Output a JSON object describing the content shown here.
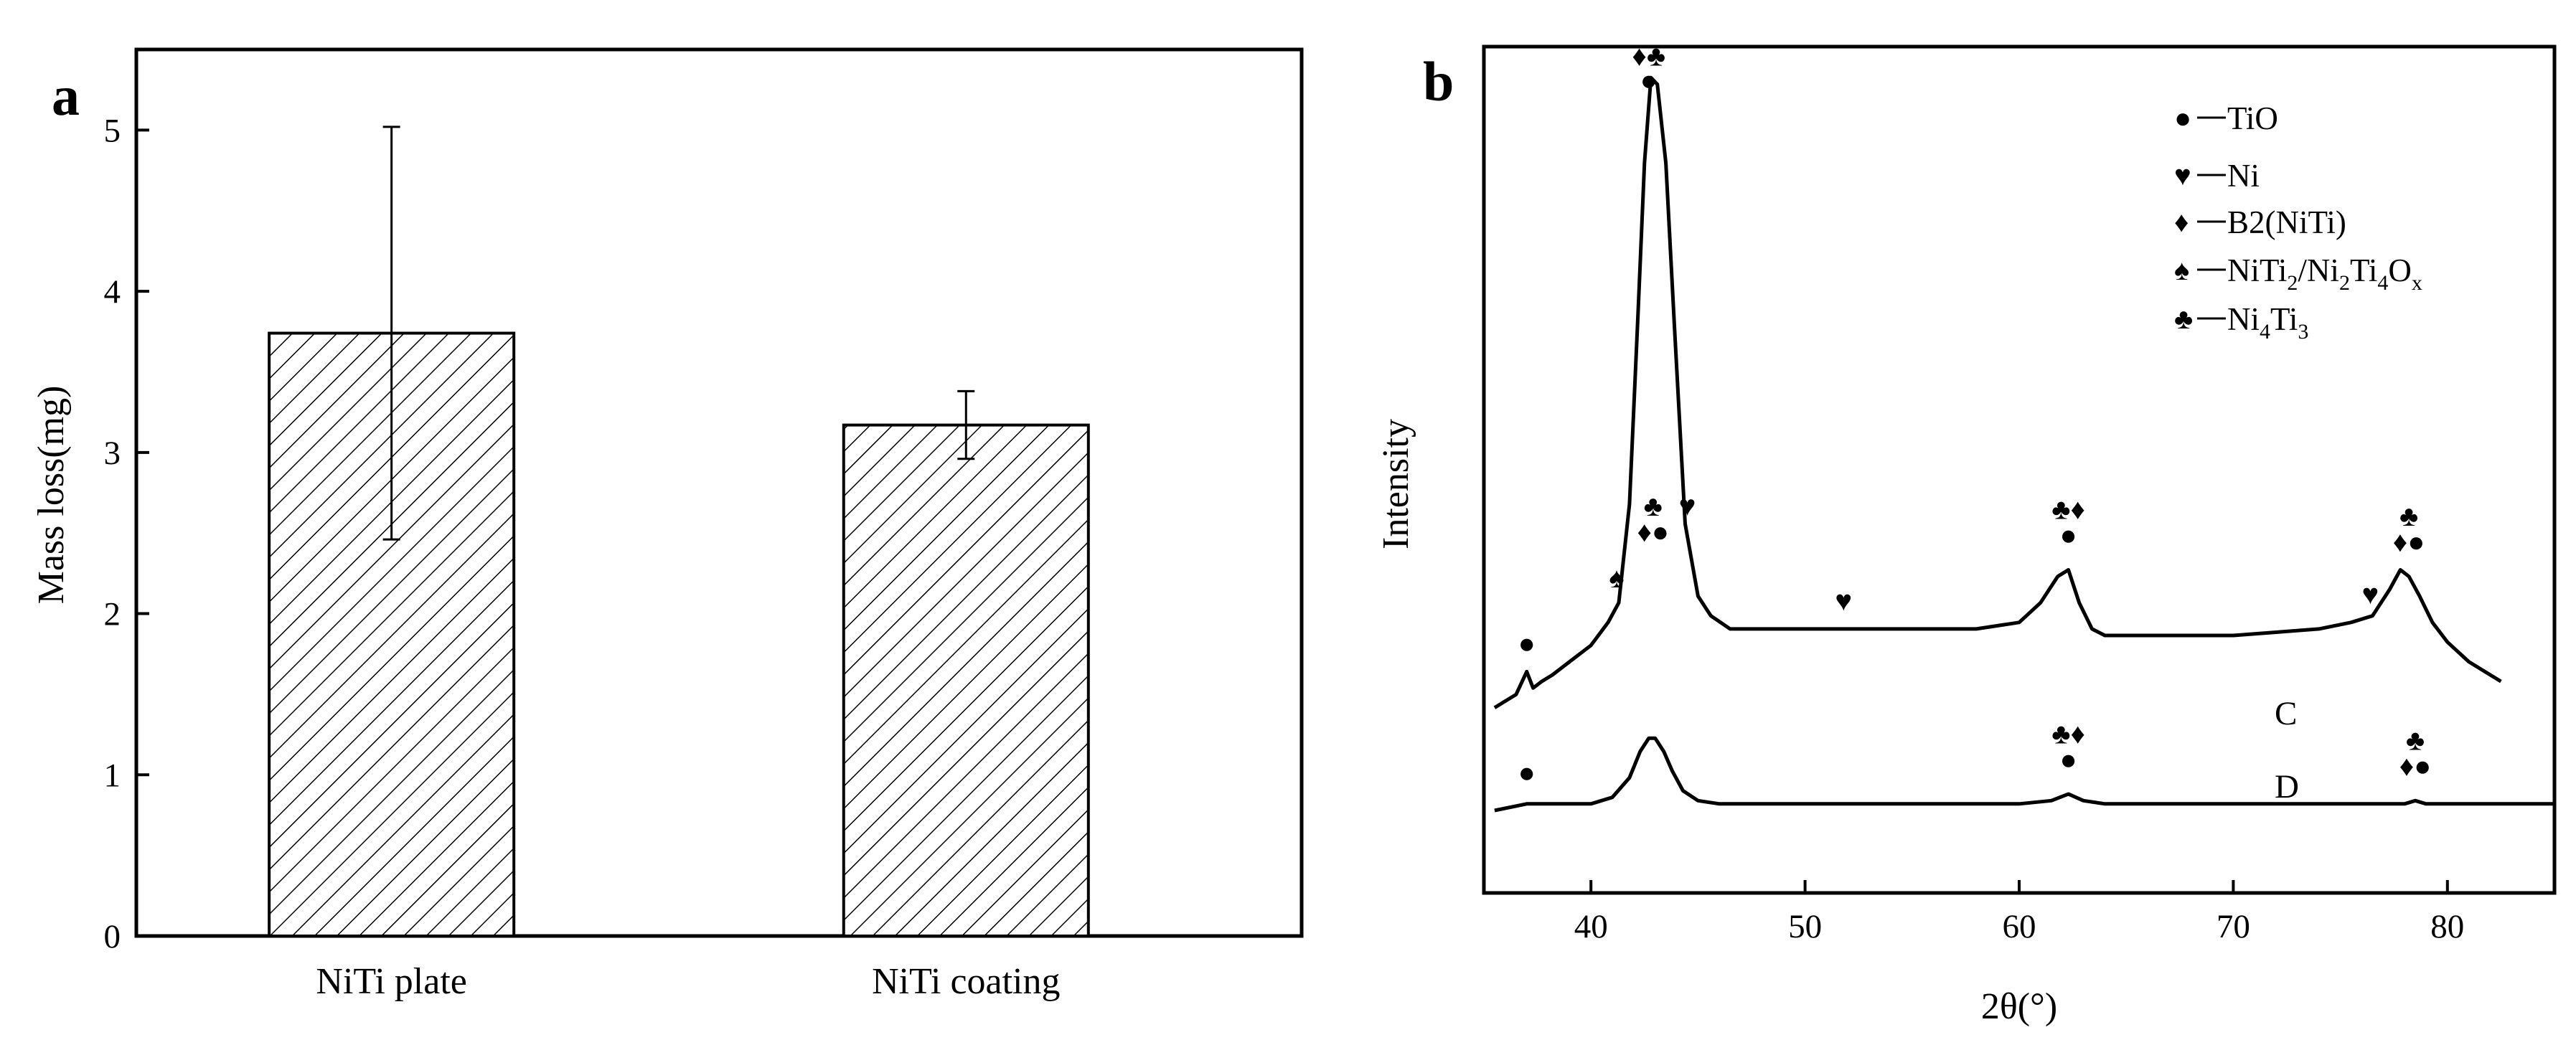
{
  "chart_data": [
    {
      "panel": "a",
      "type": "bar",
      "title": "",
      "xlabel": "",
      "ylabel": "Mass loss(mg)",
      "ylim": [
        0,
        5.5
      ],
      "yticks": [
        "0",
        "1",
        "2",
        "3",
        "4",
        "5"
      ],
      "categories": [
        "NiTi plate",
        "NiTi coating"
      ],
      "values": [
        3.74,
        3.17
      ],
      "errors": [
        1.28,
        0.21
      ],
      "fill": "diagonal hatch"
    },
    {
      "panel": "b",
      "type": "line",
      "title": "",
      "xlabel": "2θ(°)",
      "ylabel": "Intensity",
      "xlim": [
        35,
        85
      ],
      "ylim": [
        0,
        1
      ],
      "xticks": [
        "40",
        "50",
        "60",
        "70",
        "80"
      ],
      "curve_labels": [
        "C",
        "D"
      ],
      "series": [
        {
          "name": "C",
          "x": [
            35.5,
            36,
            36.5,
            37,
            37.3,
            37.7,
            38.2,
            39,
            40,
            40.8,
            41.3,
            41.8,
            42.2,
            42.5,
            42.8,
            43.1,
            43.5,
            43.9,
            44.4,
            45,
            45.6,
            46.5,
            48,
            50,
            52,
            54,
            56,
            58,
            60,
            61,
            61.8,
            62.3,
            62.8,
            63.4,
            64,
            65,
            67,
            70,
            72,
            74,
            75.5,
            76.5,
            77.3,
            77.8,
            78.2,
            78.7,
            79.3,
            80,
            81,
            82.5
          ],
          "y": [
            0.02,
            0.03,
            0.04,
            0.075,
            0.05,
            0.06,
            0.07,
            0.09,
            0.115,
            0.15,
            0.18,
            0.33,
            0.62,
            0.85,
            0.98,
            0.97,
            0.85,
            0.6,
            0.3,
            0.19,
            0.16,
            0.14,
            0.14,
            0.14,
            0.14,
            0.14,
            0.14,
            0.14,
            0.15,
            0.18,
            0.22,
            0.23,
            0.18,
            0.14,
            0.13,
            0.13,
            0.13,
            0.13,
            0.135,
            0.14,
            0.15,
            0.16,
            0.2,
            0.23,
            0.22,
            0.19,
            0.15,
            0.12,
            0.09,
            0.06
          ]
        },
        {
          "name": "D",
          "x": [
            35.5,
            37,
            38,
            40,
            41,
            41.8,
            42.3,
            42.7,
            43,
            43.4,
            43.8,
            44.3,
            45,
            46,
            50,
            55,
            60,
            61.5,
            62.3,
            63,
            64,
            70,
            75,
            78,
            78.5,
            79,
            80,
            85
          ],
          "y": [
            0,
            0.01,
            0.01,
            0.01,
            0.02,
            0.05,
            0.09,
            0.11,
            0.11,
            0.09,
            0.06,
            0.03,
            0.015,
            0.01,
            0.01,
            0.01,
            0.01,
            0.015,
            0.025,
            0.015,
            0.01,
            0.01,
            0.01,
            0.01,
            0.015,
            0.01,
            0.01,
            0.01
          ]
        }
      ],
      "peak_markers": [
        {
          "x": 42.7,
          "y": 0.985,
          "symbols": "♦♣",
          "stack": "●"
        },
        {
          "x": 37.0,
          "y": 0.09,
          "symbols": "●"
        },
        {
          "x": 41.2,
          "y": 0.19,
          "symbols": "♠"
        },
        {
          "x": 42.9,
          "y": 0.26,
          "symbols": "♦●",
          "stack": "♣"
        },
        {
          "x": 44.5,
          "y": 0.3,
          "symbols": "♥"
        },
        {
          "x": 51.8,
          "y": 0.155,
          "symbols": "♥"
        },
        {
          "x": 62.3,
          "y": 0.255,
          "symbols": "●",
          "stack": "♣♦"
        },
        {
          "x": 76.4,
          "y": 0.165,
          "symbols": "♥"
        },
        {
          "x": 78.2,
          "y": 0.245,
          "symbols": "♦●",
          "stack": "♣"
        },
        {
          "x": 37.0,
          "y": 0.03,
          "symbols": "●"
        },
        {
          "x": 62.3,
          "y": 0.05,
          "symbols": "●",
          "stack": "♣♦"
        },
        {
          "x": 78.5,
          "y": 0.04,
          "symbols": "♦●",
          "stack": "♣"
        }
      ],
      "legend": {
        "position": "top-right",
        "entries": [
          {
            "symbol": "●",
            "label": "TiO"
          },
          {
            "symbol": "♥",
            "label": "Ni"
          },
          {
            "symbol": "♦",
            "label": "B2(NiTi)"
          },
          {
            "symbol": "♠",
            "label": "NiTi2/Ni2Ti4Ox"
          },
          {
            "symbol": "♣",
            "label": "Ni4Ti3"
          }
        ]
      }
    }
  ]
}
